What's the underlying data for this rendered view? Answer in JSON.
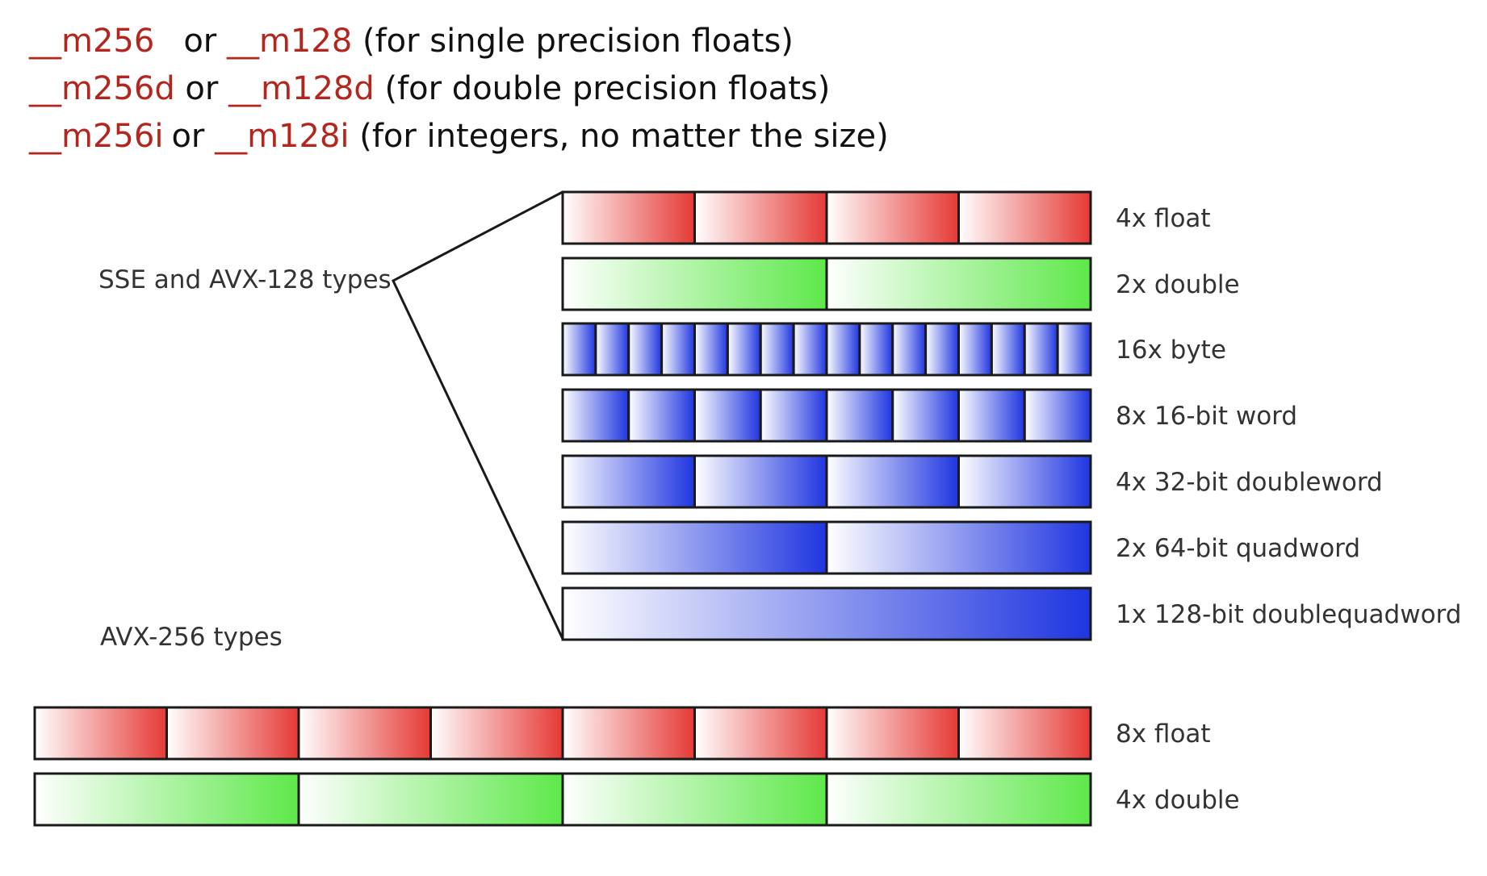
{
  "header": {
    "lines": [
      {
        "a": "__m256",
        "or": "or",
        "b": "__m128",
        "desc": "(for single precision floats)"
      },
      {
        "a": "__m256d",
        "or": "or",
        "b": "__m128d",
        "desc": "(for double precision floats)"
      },
      {
        "a": "__m256i",
        "or": "or",
        "b": "__m128i",
        "desc": "(for integers, no matter the size)"
      }
    ]
  },
  "diagram": {
    "sse_label": "SSE and AVX-128 types",
    "avx_label": "AVX-256 types",
    "colors": {
      "float_red": "#e53935",
      "double_green": "#5ee84a",
      "int_blue": "#1f35e0",
      "outline": "#1a1a1a"
    },
    "sse_rows": [
      {
        "label": "4x float",
        "count": 4,
        "color": "float_red"
      },
      {
        "label": "2x double",
        "count": 2,
        "color": "double_green"
      },
      {
        "label": "16x byte",
        "count": 16,
        "color": "int_blue"
      },
      {
        "label": "8x 16-bit word",
        "count": 8,
        "color": "int_blue"
      },
      {
        "label": "4x 32-bit doubleword",
        "count": 4,
        "color": "int_blue"
      },
      {
        "label": "2x 64-bit quadword",
        "count": 2,
        "color": "int_blue"
      },
      {
        "label": "1x 128-bit doublequadword",
        "count": 1,
        "color": "int_blue"
      }
    ],
    "avx_rows": [
      {
        "label": "8x float",
        "count": 8,
        "color": "float_red"
      },
      {
        "label": "4x double",
        "count": 4,
        "color": "double_green"
      }
    ]
  }
}
